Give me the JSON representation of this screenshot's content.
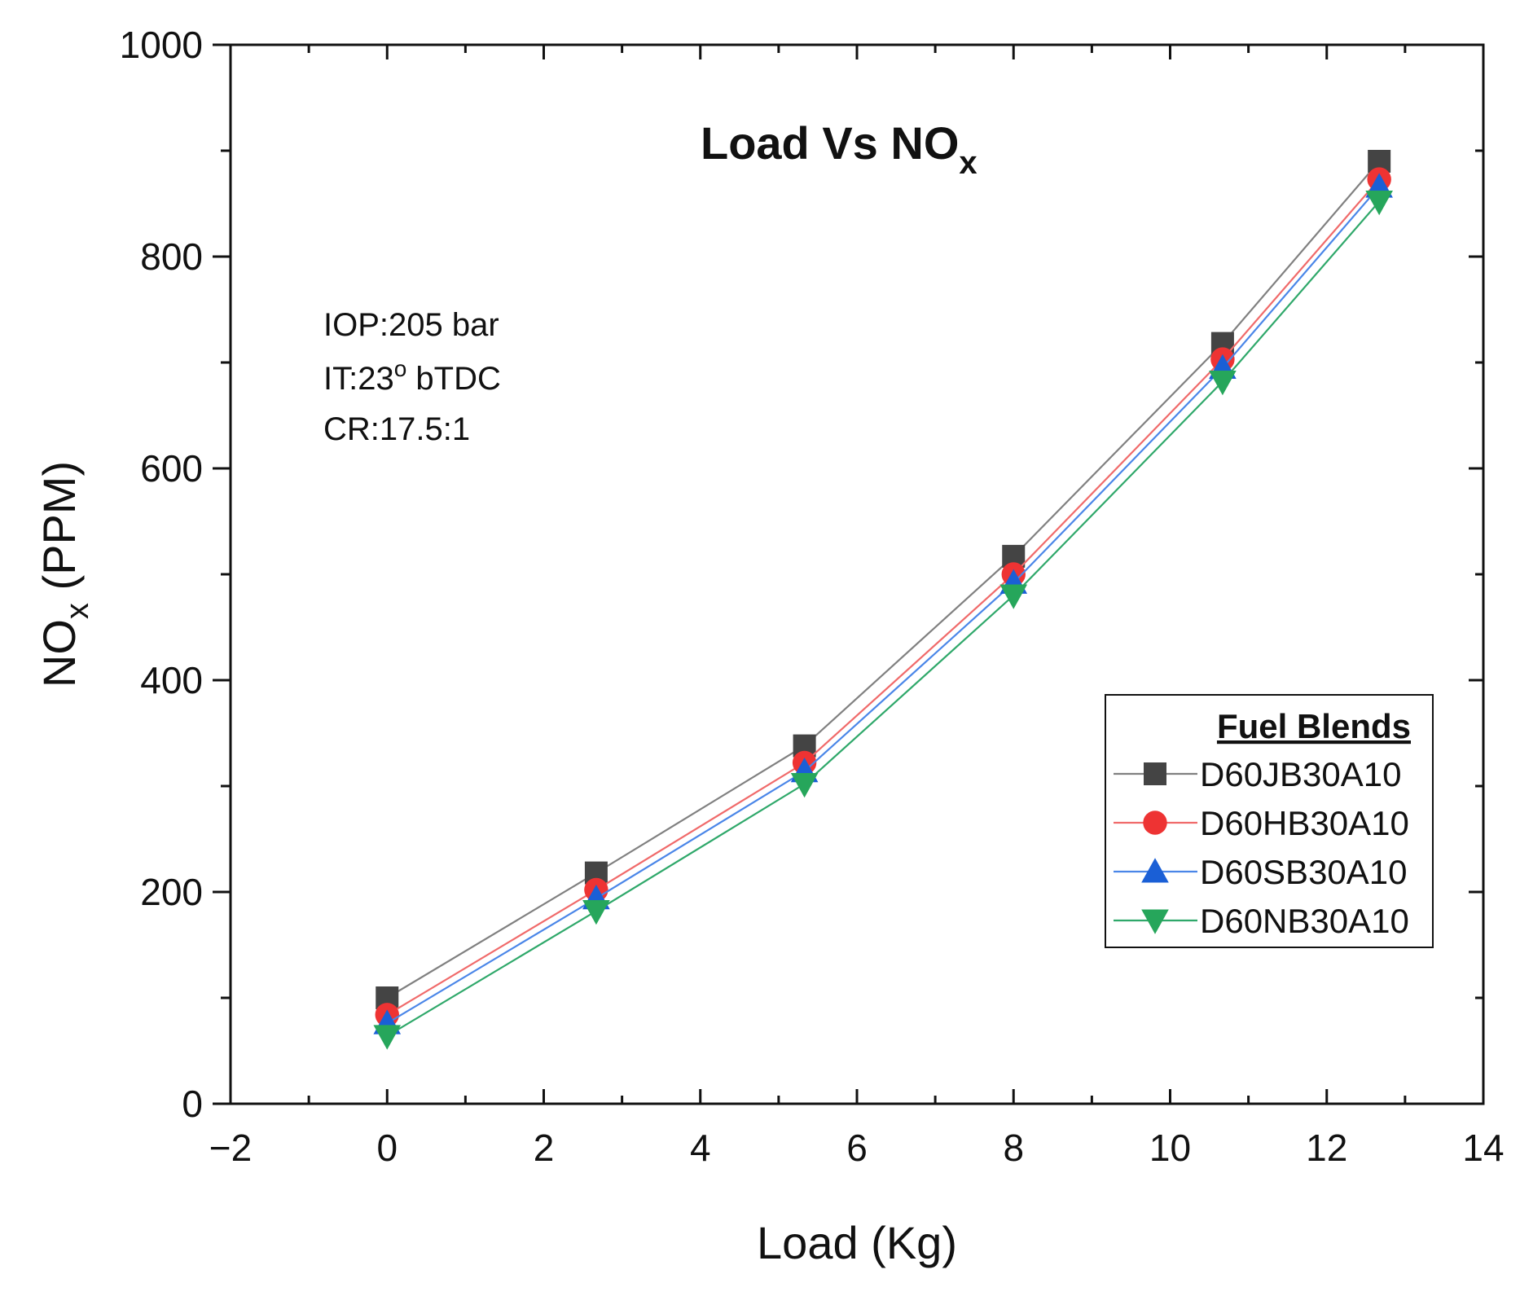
{
  "chart_data": {
    "type": "line",
    "title": "Load Vs NO",
    "title_subscript": "x",
    "xlabel": "Load (Kg)",
    "ylabel": "NO",
    "ylabel_subscript": "x",
    "ylabel_suffix": " (PPM)",
    "xlim": [
      -2,
      14
    ],
    "ylim": [
      0,
      1000
    ],
    "x_ticks": [
      -2,
      0,
      2,
      4,
      6,
      8,
      10,
      12,
      14
    ],
    "x_tick_labels": [
      "−2",
      "0",
      "2",
      "4",
      "6",
      "8",
      "10",
      "12",
      "14"
    ],
    "y_ticks": [
      0,
      200,
      400,
      600,
      800,
      1000
    ],
    "y_tick_labels": [
      "0",
      "200",
      "400",
      "600",
      "800",
      "1000"
    ],
    "grid": false,
    "legend_title": "Fuel Blends",
    "legend_position": "center-right",
    "annotations": {
      "line1": "IOP:205 bar",
      "line2_prefix": "IT:23",
      "line2_superscript": "o",
      "line2_suffix": " bTDC",
      "line3": "CR:17.5:1"
    },
    "x": [
      0,
      2.67,
      5.33,
      8,
      10.67,
      12.67
    ],
    "series": [
      {
        "name": "D60JB30A10",
        "marker": "square",
        "line_color": "#808080",
        "marker_color": "#444444",
        "values": [
          100,
          218,
          338,
          517,
          718,
          890
        ]
      },
      {
        "name": "D60HB30A10",
        "marker": "circle",
        "line_color": "#f06a6a",
        "marker_color": "#ee3333",
        "values": [
          84,
          202,
          322,
          500,
          703,
          873
        ]
      },
      {
        "name": "D60SB30A10",
        "marker": "triangle-up",
        "line_color": "#4a86e8",
        "marker_color": "#1a5fd6",
        "values": [
          76,
          194,
          314,
          492,
          695,
          866
        ]
      },
      {
        "name": "D60NB30A10",
        "marker": "triangle-down",
        "line_color": "#2fa86a",
        "marker_color": "#26a65b",
        "values": [
          64,
          182,
          302,
          480,
          682,
          852
        ]
      }
    ]
  }
}
